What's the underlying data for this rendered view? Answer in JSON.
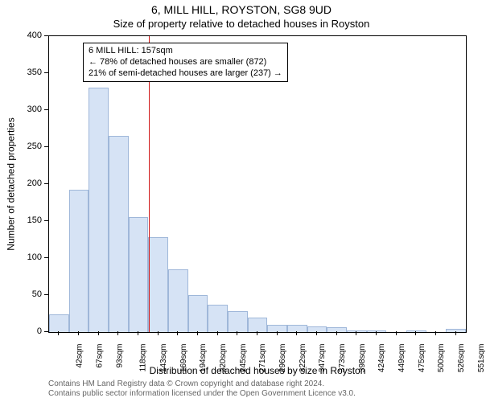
{
  "titles": {
    "main": "6, MILL HILL, ROYSTON, SG8 9UD",
    "sub": "Size of property relative to detached houses in Royston"
  },
  "axes": {
    "ylabel": "Number of detached properties",
    "xlabel": "Distribution of detached houses by size in Royston",
    "ylim": [
      0,
      400
    ],
    "yticks": [
      0,
      50,
      100,
      150,
      200,
      250,
      300,
      350,
      400
    ],
    "label_fontsize": 12,
    "tick_fontsize": 11
  },
  "chart": {
    "type": "histogram",
    "background_color": "#ffffff",
    "border_color": "#000000",
    "bar_fill": "#d6e3f5",
    "bar_stroke": "#9fb7d9",
    "bar_width": 1.0,
    "bin_start": 29,
    "bin_width": 25.5,
    "bins": [
      {
        "label": "42sqm",
        "value": 24
      },
      {
        "label": "67sqm",
        "value": 192
      },
      {
        "label": "93sqm",
        "value": 330
      },
      {
        "label": "118sqm",
        "value": 265
      },
      {
        "label": "143sqm",
        "value": 155
      },
      {
        "label": "169sqm",
        "value": 128
      },
      {
        "label": "194sqm",
        "value": 85
      },
      {
        "label": "220sqm",
        "value": 50
      },
      {
        "label": "245sqm",
        "value": 37
      },
      {
        "label": "271sqm",
        "value": 28
      },
      {
        "label": "296sqm",
        "value": 20
      },
      {
        "label": "322sqm",
        "value": 10
      },
      {
        "label": "347sqm",
        "value": 10
      },
      {
        "label": "373sqm",
        "value": 8
      },
      {
        "label": "398sqm",
        "value": 6
      },
      {
        "label": "424sqm",
        "value": 2
      },
      {
        "label": "449sqm",
        "value": 2
      },
      {
        "label": "475sqm",
        "value": 0
      },
      {
        "label": "500sqm",
        "value": 2
      },
      {
        "label": "526sqm",
        "value": 0
      },
      {
        "label": "551sqm",
        "value": 4
      }
    ]
  },
  "reference": {
    "x_value": 157,
    "color": "#d01c1c"
  },
  "annotation": {
    "line1": "6 MILL HILL: 157sqm",
    "line2": "← 78% of detached houses are smaller (872)",
    "line3": "21% of semi-detached houses are larger (237) →",
    "border_color": "#000000",
    "background_color": "#ffffff",
    "fontsize": 11
  },
  "attribution": {
    "line1": "Contains HM Land Registry data © Crown copyright and database right 2024.",
    "line2": "Contains public sector information licensed under the Open Government Licence v3.0.",
    "color": "#666666",
    "fontsize": 10
  }
}
